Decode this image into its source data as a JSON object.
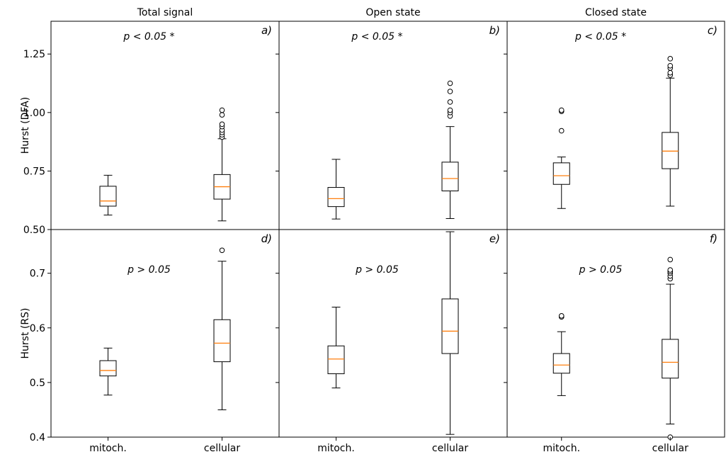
{
  "chart_data": {
    "type": "boxplot",
    "columns": [
      "Total signal",
      "Open state",
      "Closed state"
    ],
    "categories": [
      "mitoch.",
      "cellular"
    ],
    "rows": [
      {
        "ylabel": "Hurst (DFA)",
        "ylim": [
          0.5,
          1.39
        ],
        "yticks": [
          0.5,
          0.75,
          1.0,
          1.25
        ],
        "ytick_labels": [
          "0.50",
          "0.75",
          "1.00",
          "1.25"
        ],
        "panels": [
          {
            "label": "a)",
            "annotation": "p < 0.05 *",
            "boxes": [
              {
                "category": "mitoch.",
                "whisker_low": 0.562,
                "q1": 0.6,
                "median": 0.622,
                "q3": 0.685,
                "whisker_high": 0.732,
                "fliers": []
              },
              {
                "category": "cellular",
                "whisker_low": 0.537,
                "q1": 0.63,
                "median": 0.683,
                "q3": 0.735,
                "whisker_high": 0.888,
                "fliers": [
                  0.895,
                  0.905,
                  0.915,
                  0.925,
                  0.94,
                  0.95,
                  0.99,
                  1.01
                ]
              }
            ]
          },
          {
            "label": "b)",
            "annotation": "p < 0.05 *",
            "boxes": [
              {
                "category": "mitoch.",
                "whisker_low": 0.545,
                "q1": 0.598,
                "median": 0.632,
                "q3": 0.68,
                "whisker_high": 0.8,
                "fliers": []
              },
              {
                "category": "cellular",
                "whisker_low": 0.547,
                "q1": 0.665,
                "median": 0.718,
                "q3": 0.788,
                "whisker_high": 0.94,
                "fliers": [
                  0.985,
                  1.0,
                  1.01,
                  1.045,
                  1.09,
                  1.125
                ]
              }
            ]
          },
          {
            "label": "c)",
            "annotation": "p < 0.05 *",
            "boxes": [
              {
                "category": "mitoch.",
                "whisker_low": 0.59,
                "q1": 0.693,
                "median": 0.73,
                "q3": 0.785,
                "whisker_high": 0.81,
                "fliers": [
                  0.922,
                  1.005,
                  1.01
                ]
              },
              {
                "category": "cellular",
                "whisker_low": 0.6,
                "q1": 0.76,
                "median": 0.835,
                "q3": 0.915,
                "whisker_high": 1.147,
                "fliers": [
                  1.16,
                  1.17,
                  1.19,
                  1.2,
                  1.23
                ]
              }
            ]
          }
        ]
      },
      {
        "ylabel": "Hurst (RS)",
        "ylim": [
          0.4,
          0.78
        ],
        "yticks": [
          0.4,
          0.5,
          0.6,
          0.7
        ],
        "ytick_labels": [
          "0.4",
          "0.5",
          "0.6",
          "0.7"
        ],
        "panels": [
          {
            "label": "d)",
            "annotation": "p > 0.05",
            "boxes": [
              {
                "category": "mitoch.",
                "whisker_low": 0.477,
                "q1": 0.512,
                "median": 0.522,
                "q3": 0.54,
                "whisker_high": 0.563,
                "fliers": []
              },
              {
                "category": "cellular",
                "whisker_low": 0.45,
                "q1": 0.538,
                "median": 0.572,
                "q3": 0.615,
                "whisker_high": 0.722,
                "fliers": [
                  0.742
                ]
              }
            ]
          },
          {
            "label": "e)",
            "annotation": "p > 0.05",
            "boxes": [
              {
                "category": "mitoch.",
                "whisker_low": 0.49,
                "q1": 0.516,
                "median": 0.543,
                "q3": 0.567,
                "whisker_high": 0.638,
                "fliers": []
              },
              {
                "category": "cellular",
                "whisker_low": 0.405,
                "q1": 0.553,
                "median": 0.594,
                "q3": 0.653,
                "whisker_high": 0.776,
                "fliers": []
              }
            ]
          },
          {
            "label": "f)",
            "annotation": "p > 0.05",
            "boxes": [
              {
                "category": "mitoch.",
                "whisker_low": 0.476,
                "q1": 0.517,
                "median": 0.532,
                "q3": 0.553,
                "whisker_high": 0.593,
                "fliers": [
                  0.62,
                  0.622
                ]
              },
              {
                "category": "cellular",
                "whisker_low": 0.424,
                "q1": 0.508,
                "median": 0.537,
                "q3": 0.579,
                "whisker_high": 0.68,
                "fliers": [
                  0.69,
                  0.695,
                  0.7,
                  0.703,
                  0.706,
                  0.725,
                  0.4
                ]
              }
            ]
          }
        ]
      }
    ],
    "colors": {
      "box": "#000000",
      "median": "#ff7f0e",
      "flier_fill": "#ffffff",
      "background": "#ffffff"
    },
    "grid": false,
    "legend": "none"
  }
}
